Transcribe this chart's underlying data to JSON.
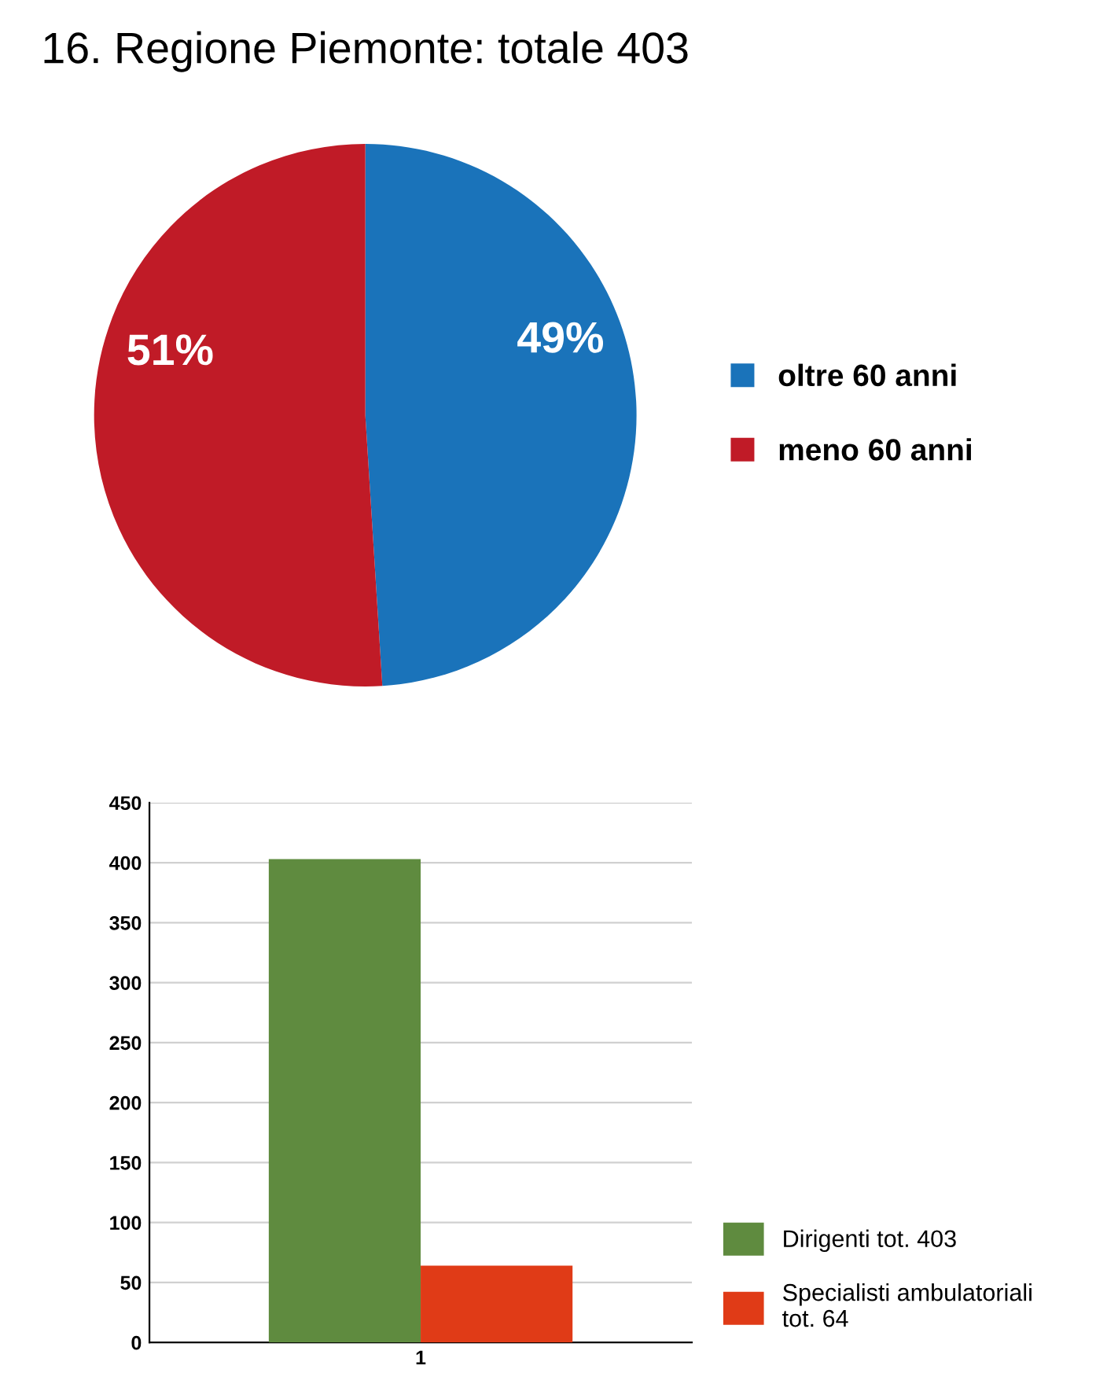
{
  "chart_data": [
    {
      "type": "pie",
      "title": "16. Regione Piemonte: totale 403",
      "categories": [
        "oltre 60 anni",
        "meno 60 anni"
      ],
      "values": [
        49,
        51
      ],
      "colors": [
        "#1a73ba",
        "#c01b27"
      ],
      "value_labels": [
        "49%",
        "51%"
      ],
      "legend": "right"
    },
    {
      "type": "bar",
      "categories": [
        "1"
      ],
      "series": [
        {
          "name": "Dirigenti tot. 403",
          "color": "#5f8b3f",
          "values": [
            403
          ]
        },
        {
          "name": "Specialisti ambulatoriali\ntot. 64",
          "color": "#e03b17",
          "values": [
            64
          ]
        }
      ],
      "ylim": [
        0,
        450
      ],
      "yticks": [
        0,
        50,
        100,
        150,
        200,
        250,
        300,
        350,
        400,
        450
      ],
      "grid": "y",
      "legend": "bottom right"
    }
  ]
}
